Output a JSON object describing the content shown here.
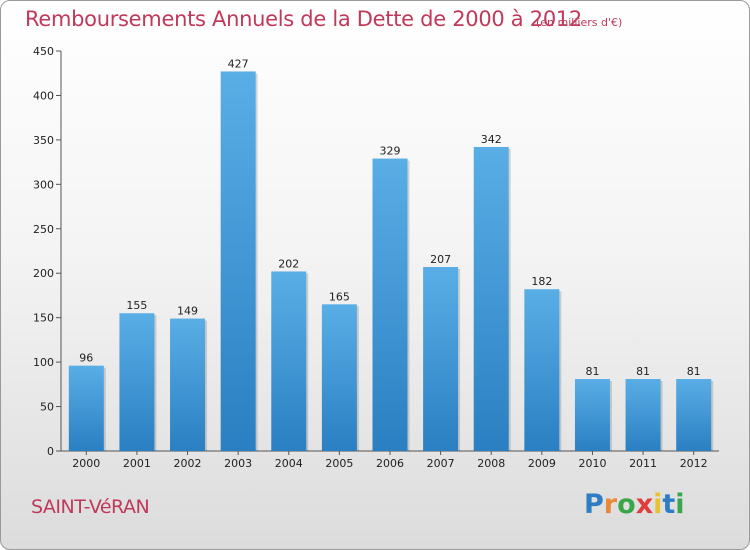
{
  "chart_data": {
    "type": "bar",
    "title": "Remboursements Annuels de la Dette de 2000 à 2012",
    "subtitle": "(en milliers d'€)",
    "categories": [
      "2000",
      "2001",
      "2002",
      "2003",
      "2004",
      "2005",
      "2006",
      "2007",
      "2008",
      "2009",
      "2010",
      "2011",
      "2012"
    ],
    "values": [
      96,
      155,
      149,
      427,
      202,
      165,
      329,
      207,
      342,
      182,
      81,
      81,
      81
    ],
    "yticks": [
      0,
      50,
      100,
      150,
      200,
      250,
      300,
      350,
      400,
      450
    ],
    "ylim": [
      0,
      450
    ],
    "xlabel": "",
    "ylabel": "",
    "grid": false,
    "legend": "none",
    "colors": {
      "bar_top": "#5aaee6",
      "bar_bottom": "#2a7fc2",
      "title": "#c0395a",
      "axis": "#555555"
    }
  },
  "footer": {
    "commune": "SAINT-VéRAN"
  },
  "logo": {
    "text": "Proxiti",
    "letters": [
      {
        "ch": "P",
        "color": "#2e7dc4"
      },
      {
        "ch": "r",
        "color": "#e8883a"
      },
      {
        "ch": "o",
        "color": "#3aa64c"
      },
      {
        "ch": "x",
        "color": "#e03c3c"
      },
      {
        "ch": "i",
        "color": "#e8c230"
      },
      {
        "ch": "t",
        "color": "#2e7dc4"
      },
      {
        "ch": "i",
        "color": "#3aa64c"
      }
    ]
  }
}
